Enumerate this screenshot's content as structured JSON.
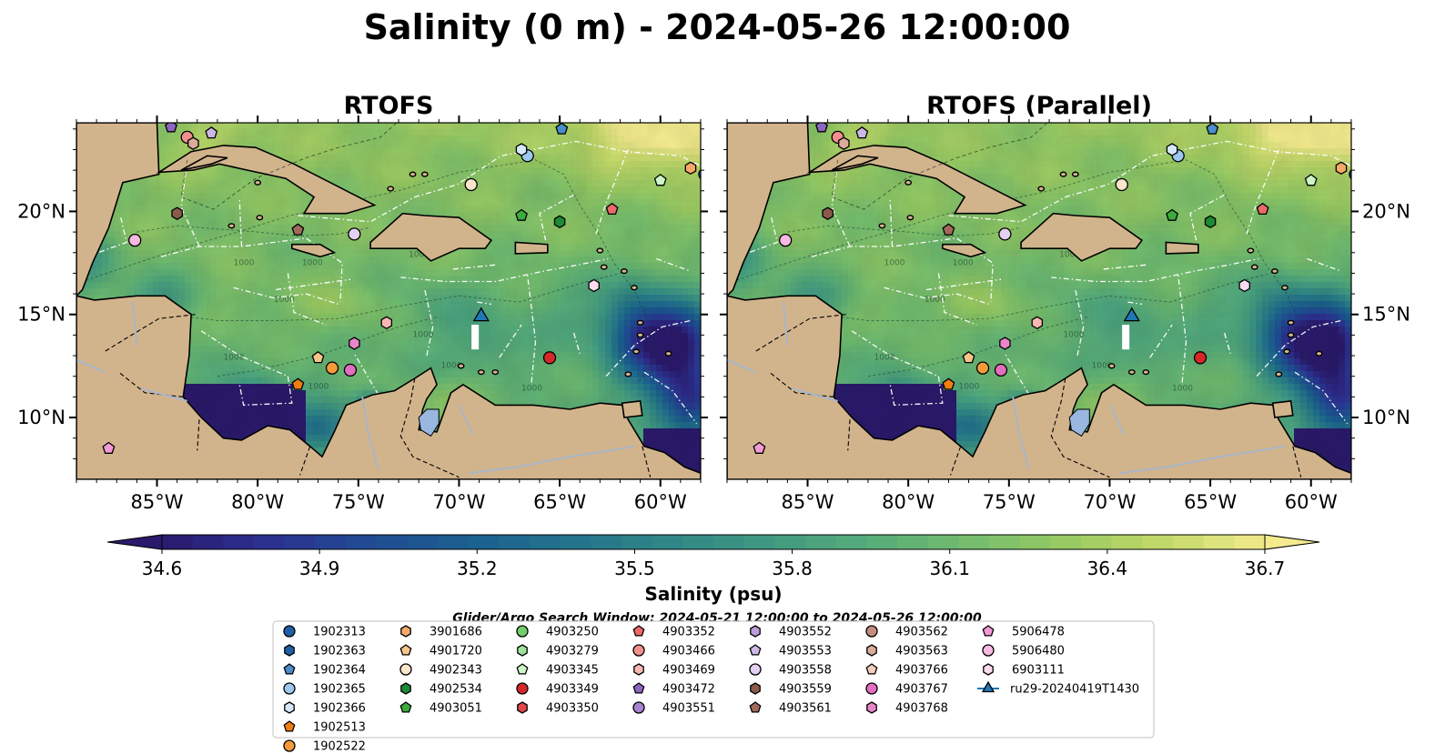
{
  "figure": {
    "title": "Salinity (0 m) - 2024-05-26 12:00:00",
    "search_window": "Glider/Argo Search Window: 2024-05-21 12:00:00 to 2024-05-26 12:00:00"
  },
  "colors": {
    "land": "#d2b48c",
    "water_lines": "#a9b6c8",
    "lake": "#9ab7e0",
    "colormap": [
      "#2a1a6b",
      "#2d2f8f",
      "#214a93",
      "#1b5e8f",
      "#22728c",
      "#2f8587",
      "#3f9882",
      "#55ab7a",
      "#72bc6e",
      "#97ca63",
      "#c3d969",
      "#f3eb8e"
    ]
  },
  "chart_data": {
    "type": "heatmap",
    "variable": "Salinity",
    "depth": "0 m",
    "time": "2024-05-26 12:00:00",
    "panels": [
      {
        "title": "RTOFS",
        "y_tick_side": "left"
      },
      {
        "title": "RTOFS (Parallel)",
        "y_tick_side": "right"
      }
    ],
    "lon_range": [
      -89,
      -58
    ],
    "lat_range": [
      7,
      24.3
    ],
    "x_ticks": [
      {
        "value": -85,
        "label": "85°W"
      },
      {
        "value": -80,
        "label": "80°W"
      },
      {
        "value": -75,
        "label": "75°W"
      },
      {
        "value": -70,
        "label": "70°W"
      },
      {
        "value": -65,
        "label": "65°W"
      },
      {
        "value": -60,
        "label": "60°W"
      }
    ],
    "y_ticks": [
      {
        "value": 10,
        "label": "10°N"
      },
      {
        "value": 15,
        "label": "15°N"
      },
      {
        "value": 20,
        "label": "20°N"
      }
    ],
    "colorbar": {
      "label": "Salinity (psu)",
      "min": 34.6,
      "max": 36.7,
      "ticks": [
        "34.6",
        "34.9",
        "35.2",
        "35.5",
        "35.8",
        "36.1",
        "36.4",
        "36.7"
      ],
      "extend": "both"
    },
    "bathymetry_contour_label": "1000",
    "floats": [
      {
        "id": "1902313",
        "color": "#1f5fa6",
        "shape": "circle",
        "lon": -57.8,
        "lat": 21.8
      },
      {
        "id": "1902363",
        "color": "#1f5fa6",
        "shape": "hexagon",
        "lon": null,
        "lat": null
      },
      {
        "id": "1902364",
        "color": "#4a8dc8",
        "shape": "pentagon",
        "lon": -64.9,
        "lat": 24.0
      },
      {
        "id": "1902365",
        "color": "#9cc7ee",
        "shape": "circle",
        "lon": -66.6,
        "lat": 22.7
      },
      {
        "id": "1902366",
        "color": "#d4e8fa",
        "shape": "hexagon",
        "lon": -66.9,
        "lat": 23.0
      },
      {
        "id": "1902513",
        "color": "#f07d12",
        "shape": "pentagon",
        "lon": -78.0,
        "lat": 11.6
      },
      {
        "id": "1902522",
        "color": "#f59a3a",
        "shape": "circle",
        "lon": -76.3,
        "lat": 12.4
      },
      {
        "id": "3901686",
        "color": "#f8a869",
        "shape": "hexagon",
        "lon": -58.5,
        "lat": 22.1
      },
      {
        "id": "4901720",
        "color": "#f6c48a",
        "shape": "pentagon",
        "lon": -77.0,
        "lat": 12.9
      },
      {
        "id": "4902343",
        "color": "#fbe6cc",
        "shape": "circle",
        "lon": -69.4,
        "lat": 21.3
      },
      {
        "id": "4902534",
        "color": "#1e8a33",
        "shape": "hexagon",
        "lon": -65.0,
        "lat": 19.5
      },
      {
        "id": "4903051",
        "color": "#3cab3c",
        "shape": "pentagon",
        "lon": -66.9,
        "lat": 19.8
      },
      {
        "id": "4903250",
        "color": "#72cf6c",
        "shape": "circle",
        "lon": null,
        "lat": null
      },
      {
        "id": "4903279",
        "color": "#9fe39a",
        "shape": "hexagon",
        "lon": null,
        "lat": null
      },
      {
        "id": "4903345",
        "color": "#cdf5c8",
        "shape": "pentagon",
        "lon": -60.0,
        "lat": 21.5
      },
      {
        "id": "4903349",
        "color": "#d62728",
        "shape": "circle",
        "lon": -65.5,
        "lat": 12.9
      },
      {
        "id": "4903350",
        "color": "#e0474a",
        "shape": "hexagon",
        "lon": null,
        "lat": null
      },
      {
        "id": "4903352",
        "color": "#ec6a6c",
        "shape": "pentagon",
        "lon": -62.4,
        "lat": 20.1
      },
      {
        "id": "4903466",
        "color": "#f28f8c",
        "shape": "circle",
        "lon": -83.5,
        "lat": 23.6
      },
      {
        "id": "4903469",
        "color": "#f8b7b1",
        "shape": "hexagon",
        "lon": -73.6,
        "lat": 14.6
      },
      {
        "id": "4903472",
        "color": "#8d66bf",
        "shape": "pentagon",
        "lon": -84.3,
        "lat": 24.1
      },
      {
        "id": "4903551",
        "color": "#a883cf",
        "shape": "circle",
        "lon": null,
        "lat": null
      },
      {
        "id": "4903552",
        "color": "#bb9ddb",
        "shape": "hexagon",
        "lon": null,
        "lat": null
      },
      {
        "id": "4903553",
        "color": "#cdb7e7",
        "shape": "pentagon",
        "lon": -82.3,
        "lat": 23.8
      },
      {
        "id": "4903558",
        "color": "#e3d0f3",
        "shape": "circle",
        "lon": -75.2,
        "lat": 18.9
      },
      {
        "id": "4903559",
        "color": "#8b5a4a",
        "shape": "hexagon",
        "lon": -84.0,
        "lat": 19.9
      },
      {
        "id": "4903561",
        "color": "#a0695a",
        "shape": "pentagon",
        "lon": -78.0,
        "lat": 19.1
      },
      {
        "id": "4903562",
        "color": "#c48d7e",
        "shape": "circle",
        "lon": null,
        "lat": null
      },
      {
        "id": "4903563",
        "color": "#dbab9c",
        "shape": "hexagon",
        "lon": -83.2,
        "lat": 23.3
      },
      {
        "id": "4903766",
        "color": "#f5cdbd",
        "shape": "pentagon",
        "lon": null,
        "lat": null
      },
      {
        "id": "4903767",
        "color": "#e36ec0",
        "shape": "circle",
        "lon": -75.4,
        "lat": 12.3
      },
      {
        "id": "4903768",
        "color": "#ea85cb",
        "shape": "hexagon",
        "lon": -75.2,
        "lat": 13.6
      },
      {
        "id": "5906478",
        "color": "#f29ad6",
        "shape": "pentagon",
        "lon": -87.4,
        "lat": 8.5
      },
      {
        "id": "5906480",
        "color": "#f7b8e2",
        "shape": "circle",
        "lon": -86.1,
        "lat": 18.6
      },
      {
        "id": "6903111",
        "color": "#fcdaf0",
        "shape": "hexagon",
        "lon": -63.3,
        "lat": 16.4
      }
    ],
    "glider": {
      "id": "ru29-20240419T1430",
      "color": "#1f77b4",
      "shape": "triangle",
      "lon": -68.9,
      "lat": 14.9
    }
  }
}
